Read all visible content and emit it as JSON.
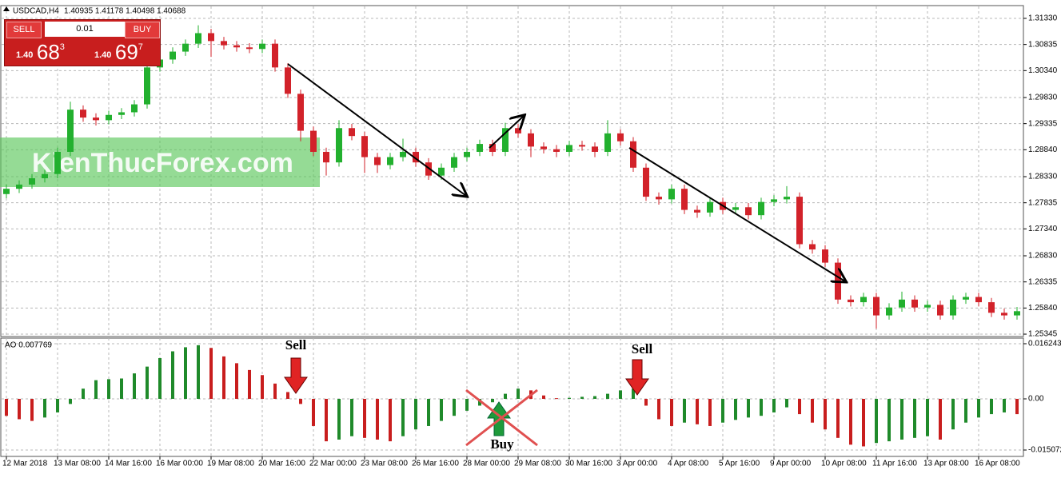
{
  "chart_data": [
    {
      "type": "candlestick",
      "title": "USDCAD,H4",
      "subtitle": "1.40935 1.41178 1.40498 1.40688",
      "open": [
        1.28,
        1.281,
        1.2818,
        1.283,
        1.2838,
        1.288,
        1.296,
        1.2945,
        1.294,
        1.295,
        1.2955,
        1.297,
        1.304,
        1.3055,
        1.307,
        1.3085,
        1.3105,
        1.309,
        1.3082,
        1.3078,
        1.3075,
        1.3085,
        1.304,
        1.299,
        1.292,
        1.288,
        1.286,
        1.2925,
        1.291,
        1.287,
        1.2855,
        1.287,
        1.288,
        1.286,
        1.2835,
        1.285,
        1.287,
        1.288,
        1.2895,
        1.288,
        1.2925,
        1.2915,
        1.289,
        1.2885,
        1.288,
        1.2893,
        1.289,
        1.288,
        1.2915,
        1.29,
        1.285,
        1.2795,
        1.279,
        1.281,
        1.277,
        1.2765,
        1.2785,
        1.277,
        1.2775,
        1.276,
        1.2785,
        1.279,
        1.2795,
        1.2705,
        1.2695,
        1.267,
        1.26,
        1.2595,
        1.2605,
        1.257,
        1.2585,
        1.26,
        1.2585,
        1.259,
        1.257,
        1.26,
        1.2605,
        1.2595,
        1.2575,
        1.257
      ],
      "high": [
        1.2818,
        1.2826,
        1.2838,
        1.2846,
        1.2888,
        1.2975,
        1.2968,
        1.2953,
        1.2958,
        1.2963,
        1.2978,
        1.3048,
        1.3063,
        1.3078,
        1.3093,
        1.312,
        1.3113,
        1.3098,
        1.309,
        1.3086,
        1.3093,
        1.3093,
        1.3048,
        1.2998,
        1.2928,
        1.2888,
        1.294,
        1.2933,
        1.2918,
        1.2878,
        1.2878,
        1.2905,
        1.2888,
        1.2868,
        1.2858,
        1.2878,
        1.2888,
        1.2903,
        1.2903,
        1.2935,
        1.2933,
        1.2923,
        1.2898,
        1.2893,
        1.2901,
        1.2901,
        1.2898,
        1.294,
        1.2923,
        1.2908,
        1.2858,
        1.2803,
        1.2818,
        1.2818,
        1.2778,
        1.2793,
        1.2793,
        1.2783,
        1.2783,
        1.2793,
        1.2798,
        1.2815,
        1.2803,
        1.2713,
        1.2703,
        1.2678,
        1.2608,
        1.2613,
        1.2613,
        1.2593,
        1.2615,
        1.2608,
        1.2598,
        1.2598,
        1.2608,
        1.2613,
        1.2613,
        1.2603,
        1.2583,
        1.2586
      ],
      "low": [
        1.2792,
        1.2802,
        1.281,
        1.2822,
        1.283,
        1.2872,
        1.2937,
        1.293,
        1.2932,
        1.2942,
        1.2947,
        1.2962,
        1.3032,
        1.3047,
        1.3062,
        1.3077,
        1.306,
        1.3074,
        1.307,
        1.3067,
        1.3067,
        1.3032,
        1.2982,
        1.29,
        1.2872,
        1.2835,
        1.2852,
        1.2902,
        1.284,
        1.284,
        1.2847,
        1.2862,
        1.2852,
        1.2827,
        1.2827,
        1.2842,
        1.2862,
        1.2872,
        1.2872,
        1.2872,
        1.2907,
        1.287,
        1.2877,
        1.287,
        1.2872,
        1.2882,
        1.287,
        1.2872,
        1.2892,
        1.2842,
        1.2787,
        1.278,
        1.2782,
        1.2762,
        1.2755,
        1.2757,
        1.2762,
        1.2762,
        1.2752,
        1.2752,
        1.2777,
        1.2782,
        1.2697,
        1.2687,
        1.2662,
        1.2592,
        1.2587,
        1.2587,
        1.2545,
        1.2562,
        1.2577,
        1.2577,
        1.2577,
        1.2562,
        1.2562,
        1.2592,
        1.2587,
        1.2567,
        1.2562,
        1.2562
      ],
      "close": [
        1.281,
        1.2818,
        1.283,
        1.2838,
        1.288,
        1.296,
        1.2945,
        1.294,
        1.295,
        1.2955,
        1.297,
        1.304,
        1.3055,
        1.307,
        1.3085,
        1.3105,
        1.309,
        1.3082,
        1.3078,
        1.3075,
        1.3085,
        1.304,
        1.299,
        1.292,
        1.288,
        1.286,
        1.2925,
        1.291,
        1.287,
        1.2855,
        1.287,
        1.288,
        1.286,
        1.2835,
        1.285,
        1.287,
        1.288,
        1.2895,
        1.288,
        1.2925,
        1.2915,
        1.289,
        1.2885,
        1.288,
        1.2893,
        1.289,
        1.288,
        1.2915,
        1.29,
        1.285,
        1.2795,
        1.279,
        1.281,
        1.277,
        1.2765,
        1.2785,
        1.277,
        1.2775,
        1.276,
        1.2785,
        1.279,
        1.2795,
        1.2705,
        1.2695,
        1.267,
        1.26,
        1.2595,
        1.2605,
        1.257,
        1.2585,
        1.26,
        1.2585,
        1.259,
        1.257,
        1.26,
        1.2605,
        1.2595,
        1.2575,
        1.257,
        1.2578
      ],
      "up_color": "#22b02e",
      "down_color": "#d2222a",
      "ylim": [
        1.25315,
        1.31557
      ],
      "yticks": [
        {
          "value": 1.3133,
          "label": "1.31330"
        },
        1.30835,
        {
          "value": 1.3034,
          "label": "1.30340"
        },
        {
          "value": 1.2983,
          "label": "1.29830"
        },
        1.29335,
        {
          "value": 1.2884,
          "label": "1.28840"
        },
        {
          "value": 1.2833,
          "label": "1.28330"
        },
        1.27835,
        {
          "value": 1.2734,
          "label": "1.27340"
        },
        {
          "value": 1.2683,
          "label": "1.26830"
        },
        1.26335,
        {
          "value": 1.2584,
          "label": "1.25840"
        },
        1.25345
      ],
      "grid": true
    },
    {
      "type": "ao",
      "title": "AO 0.007769",
      "categories": [
        "12 Mar 2018",
        null,
        null,
        null,
        "13 Mar 08:00",
        null,
        null,
        null,
        "14 Mar 16:00",
        null,
        null,
        null,
        "16 Mar 00:00",
        null,
        null,
        null,
        "19 Mar 08:00",
        null,
        null,
        null,
        "20 Mar 16:00",
        null,
        null,
        null,
        "22 Mar 00:00",
        null,
        null,
        null,
        "23 Mar 08:00",
        null,
        null,
        null,
        "26 Mar 16:00",
        null,
        null,
        null,
        "28 Mar 00:00",
        null,
        null,
        null,
        "29 Mar 08:00",
        null,
        null,
        null,
        "30 Mar 16:00",
        null,
        null,
        null,
        "3 Apr 00:00",
        null,
        null,
        null,
        "4 Apr 08:00",
        null,
        null,
        null,
        "5 Apr 16:00",
        null,
        null,
        null,
        "9 Apr 00:00",
        null,
        null,
        null,
        "10 Apr 08:00",
        null,
        null,
        null,
        "11 Apr 16:00",
        null,
        null,
        null,
        "13 Apr 08:00",
        null,
        null,
        null,
        "16 Apr 08:00",
        null,
        null,
        null
      ],
      "values": [
        -0.005,
        -0.006,
        -0.0065,
        -0.0055,
        -0.004,
        -0.0015,
        0.003,
        0.0055,
        0.0058,
        0.006,
        0.0075,
        0.0095,
        0.012,
        0.014,
        0.0152,
        0.0158,
        0.015,
        0.0125,
        0.0105,
        0.0085,
        0.007,
        0.0045,
        0.002,
        -0.0015,
        -0.008,
        -0.0125,
        -0.012,
        -0.011,
        -0.0115,
        -0.012,
        -0.0125,
        -0.011,
        -0.009,
        -0.008,
        -0.0065,
        -0.005,
        -0.0035,
        -0.002,
        -0.001,
        0.0015,
        0.003,
        0.0025,
        0.001,
        0.0002,
        0.0003,
        0.0006,
        0.0008,
        0.0015,
        0.0025,
        0.003,
        -0.002,
        -0.006,
        -0.008,
        -0.007,
        -0.0075,
        -0.008,
        -0.007,
        -0.0062,
        -0.0055,
        -0.005,
        -0.004,
        -0.0025,
        -0.0045,
        -0.007,
        -0.009,
        -0.0115,
        -0.0135,
        -0.014,
        -0.013,
        -0.0125,
        -0.012,
        -0.0115,
        -0.011,
        -0.012,
        -0.009,
        -0.007,
        -0.0055,
        -0.0045,
        -0.004,
        -0.0045
      ],
      "up_color": "#1f8a2a",
      "down_color": "#c81e1e",
      "ylim": [
        -0.01672,
        0.01789
      ],
      "yticks": [
        0.016243,
        {
          "value": 0,
          "label": "0.00"
        },
        -0.015072
      ],
      "annotations": [
        "Sell",
        "Sell",
        "Buy"
      ]
    }
  ],
  "trade_panel": {
    "sell": "SELL",
    "buy": "BUY",
    "lot": "0.01",
    "bid": {
      "prefix": "1.40",
      "big": "68",
      "small": "3"
    },
    "ask": {
      "prefix": "1.40",
      "big": "69",
      "small": "7"
    }
  },
  "watermark": "KienThucForex.com"
}
